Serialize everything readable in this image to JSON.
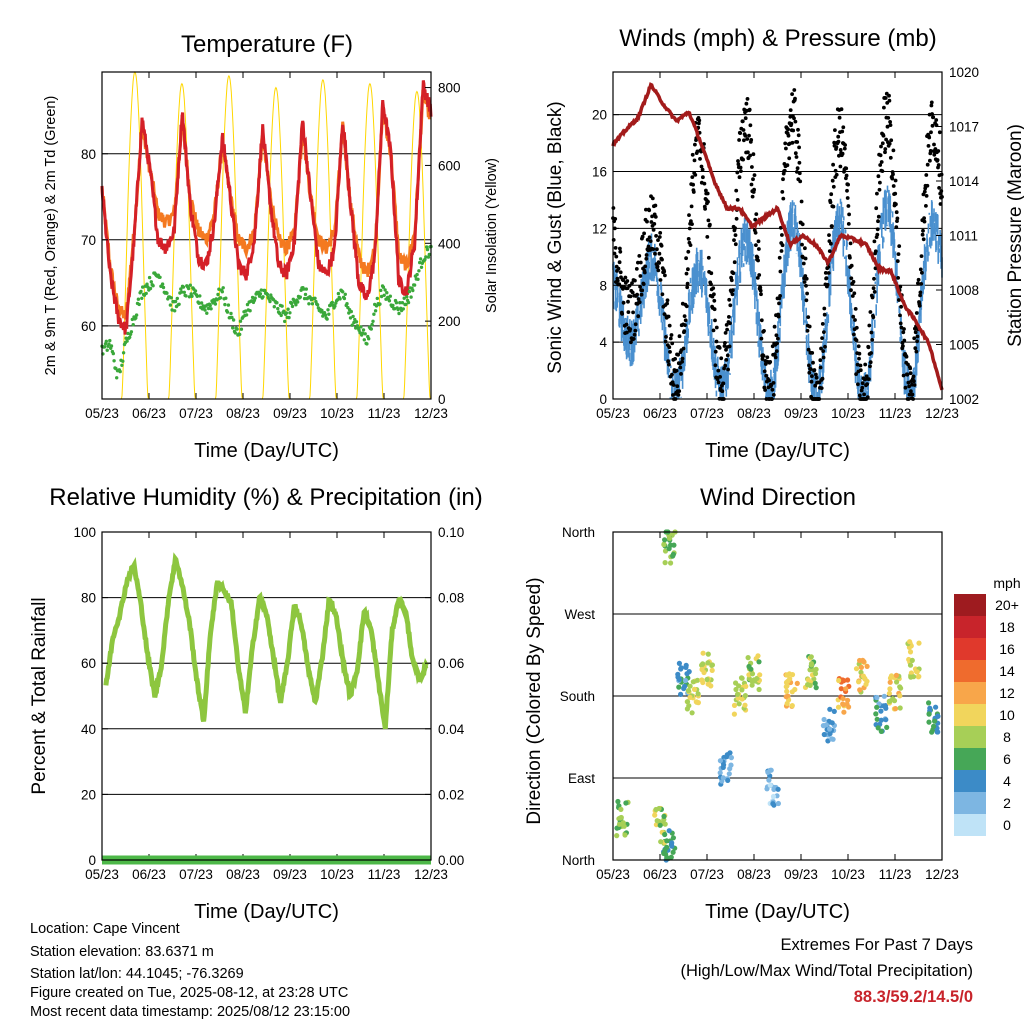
{
  "chart_data": [
    {
      "type": "line",
      "title": "Temperature (F)",
      "xlabel": "Time (Day/UTC)",
      "ylabel": "2m & 9m T (Red, Orange) & 2m Td (Green)",
      "y2label": "Solar Insolation (Yellow)",
      "x_ticks": [
        "05/23",
        "06/23",
        "07/23",
        "08/23",
        "09/23",
        "10/23",
        "11/23",
        "12/23"
      ],
      "ylim": [
        51.5,
        89.5
      ],
      "y_ticks": [
        60,
        70,
        80
      ],
      "y2lim": [
        0,
        840
      ],
      "y2_ticks": [
        0,
        200,
        400,
        600,
        800
      ],
      "grid": true,
      "series": [
        {
          "name": "2m T",
          "color": "#d42027",
          "values": [
            76,
            66,
            61,
            59.5,
            70,
            84,
            78,
            70,
            69,
            71,
            85,
            74,
            68,
            67,
            72,
            82,
            75,
            67,
            66,
            70,
            83,
            74,
            67,
            66,
            70,
            84,
            75,
            67,
            66,
            69,
            84,
            74,
            65,
            63,
            68,
            86,
            80,
            65,
            64,
            70,
            88,
            85
          ]
        },
        {
          "name": "9m T",
          "color": "#f47920",
          "values": [
            76,
            67,
            62,
            61,
            71,
            83,
            78,
            73,
            72,
            73,
            84,
            75,
            71,
            70,
            73,
            81,
            75,
            70,
            69,
            71,
            82,
            75,
            70,
            69,
            71,
            83,
            75,
            70,
            69,
            71,
            83,
            74,
            68,
            66,
            69,
            85,
            80,
            68,
            67,
            71,
            87,
            84
          ]
        },
        {
          "name": "2m Td",
          "color": "#3aa83a",
          "values": [
            57,
            58,
            54,
            58,
            61,
            64,
            65,
            66,
            64,
            62,
            64,
            64,
            63,
            62,
            63,
            64,
            61,
            59,
            62,
            63,
            64,
            63,
            62,
            61,
            63,
            64,
            63,
            62,
            61,
            63,
            64,
            61,
            60,
            58,
            62,
            64,
            63,
            62,
            63,
            65,
            68,
            69
          ]
        },
        {
          "name": "Solar Insolation",
          "color": "#ffd700",
          "axis": "y2",
          "peaks": [
            840,
            810,
            830,
            800,
            820,
            810,
            790,
            840
          ]
        }
      ]
    },
    {
      "type": "scatter",
      "title": "Winds (mph) & Pressure (mb)",
      "xlabel": "Time (Day/UTC)",
      "ylabel": "Sonic Wind & Gust (Blue, Black)",
      "y2label": "Station Pressure (Maroon)",
      "x_ticks": [
        "05/23",
        "06/23",
        "07/23",
        "08/23",
        "09/23",
        "10/23",
        "11/23",
        "12/23"
      ],
      "ylim": [
        0,
        23
      ],
      "y_ticks": [
        0,
        4,
        8,
        12,
        16,
        20
      ],
      "y2lim": [
        1002,
        1020
      ],
      "y2_ticks": [
        1002,
        1005,
        1008,
        1011,
        1014,
        1017,
        1020
      ],
      "grid": true,
      "series": [
        {
          "name": "Sonic Wind",
          "color": "#4a90cf",
          "daily_peaks": [
            9,
            10,
            9,
            11,
            12,
            13,
            12,
            14,
            12
          ],
          "daily_lows": [
            6,
            1,
            0,
            1,
            0,
            0,
            0,
            0,
            2
          ]
        },
        {
          "name": "Gust",
          "color": "#000000",
          "daily_peaks": [
            13,
            12,
            18,
            19,
            21,
            18,
            19,
            20,
            19
          ],
          "daily_lows": [
            8,
            3,
            0,
            2,
            0,
            0,
            0,
            0,
            4
          ]
        },
        {
          "name": "Station Pressure",
          "color": "#a31b1b",
          "values": [
            1016,
            1016.8,
            1017.5,
            1019.3,
            1018.2,
            1017.3,
            1017.8,
            1016,
            1014,
            1012.5,
            1012.5,
            1011.5,
            1012,
            1012.5,
            1010.5,
            1011,
            1010.5,
            1009.5,
            1011,
            1010.8,
            1010.5,
            1009.2,
            1009,
            1007.2,
            1006.2,
            1005,
            1002.5
          ]
        }
      ]
    },
    {
      "type": "line",
      "title": "Relative Humidity (%) & Precipitation (in)",
      "xlabel": "Time (Day/UTC)",
      "ylabel": "Percent & Total Rainfall",
      "x_ticks": [
        "05/23",
        "06/23",
        "07/23",
        "08/23",
        "09/23",
        "10/23",
        "11/23",
        "12/23"
      ],
      "ylim": [
        0,
        100
      ],
      "y_ticks": [
        0,
        20,
        40,
        60,
        80,
        100
      ],
      "y2lim": [
        0,
        0.1
      ],
      "y2_ticks": [
        "0.00",
        "0.02",
        "0.04",
        "0.06",
        "0.08",
        "0.10"
      ],
      "grid": true,
      "series": [
        {
          "name": "Relative Humidity",
          "color": "#8dc63f",
          "values": [
            53,
            68,
            75,
            85,
            90,
            78,
            62,
            50,
            60,
            80,
            92,
            83,
            72,
            55,
            42,
            70,
            85,
            82,
            78,
            58,
            45,
            65,
            80,
            75,
            62,
            48,
            60,
            78,
            72,
            58,
            48,
            62,
            80,
            74,
            60,
            50,
            58,
            76,
            70,
            55,
            40,
            70,
            80,
            75,
            60,
            55,
            60
          ]
        },
        {
          "name": "Total Rainfall",
          "color": "#4db848",
          "values": [
            0,
            0,
            0,
            0,
            0,
            0,
            0,
            0
          ]
        }
      ]
    },
    {
      "type": "scatter",
      "title": "Wind Direction",
      "xlabel": "Time (Day/UTC)",
      "ylabel": "Direction (Colored By Speed)",
      "x_ticks": [
        "05/23",
        "06/23",
        "07/23",
        "08/23",
        "09/23",
        "10/23",
        "11/23",
        "12/23"
      ],
      "y_ticks": [
        "North",
        "East",
        "South",
        "West",
        "North"
      ],
      "ylim": [
        0,
        360
      ],
      "grid": true,
      "legend": {
        "title": "mph",
        "labels": [
          "20+",
          "18",
          "16",
          "14",
          "12",
          "10",
          "8",
          "6",
          "4",
          "2",
          "0"
        ],
        "colors": [
          "#9e1b1f",
          "#c8242b",
          "#e0392c",
          "#ef6b2d",
          "#f8a64a",
          "#f1d55c",
          "#a7cf57",
          "#46a757",
          "#3c8bc7",
          "#7db6e2",
          "#bfe3f7"
        ]
      },
      "clusters": [
        {
          "day": 0.2,
          "dir": 45,
          "speed": 7
        },
        {
          "day": 1.0,
          "dir": 38,
          "speed": 8
        },
        {
          "day": 1.2,
          "dir": 18,
          "speed": 5
        },
        {
          "day": 1.2,
          "dir": 345,
          "speed": 7
        },
        {
          "day": 1.5,
          "dir": 200,
          "speed": 4
        },
        {
          "day": 1.7,
          "dir": 180,
          "speed": 9
        },
        {
          "day": 2.0,
          "dir": 210,
          "speed": 9
        },
        {
          "day": 2.4,
          "dir": 100,
          "speed": 3
        },
        {
          "day": 2.7,
          "dir": 180,
          "speed": 9
        },
        {
          "day": 3.0,
          "dir": 205,
          "speed": 8
        },
        {
          "day": 3.4,
          "dir": 80,
          "speed": 2
        },
        {
          "day": 3.8,
          "dir": 185,
          "speed": 11
        },
        {
          "day": 4.2,
          "dir": 205,
          "speed": 8
        },
        {
          "day": 4.6,
          "dir": 150,
          "speed": 3
        },
        {
          "day": 4.9,
          "dir": 180,
          "speed": 12
        },
        {
          "day": 5.3,
          "dir": 200,
          "speed": 10
        },
        {
          "day": 5.7,
          "dir": 160,
          "speed": 4
        },
        {
          "day": 6.0,
          "dir": 185,
          "speed": 10
        },
        {
          "day": 6.4,
          "dir": 220,
          "speed": 9
        },
        {
          "day": 6.8,
          "dir": 160,
          "speed": 5
        },
        {
          "day": 7.2,
          "dir": 190,
          "speed": 11
        },
        {
          "day": 7.5,
          "dir": 210,
          "speed": 8
        }
      ]
    }
  ],
  "footer": {
    "location": "Location: Cape Vincent",
    "elevation": "Station elevation: 83.6371 m",
    "latlon": "Station lat/lon: 44.1045; -76.3269",
    "created": "Figure created on Tue, 2025-08-12, at 23:28 UTC",
    "timestamp": "Most recent data timestamp: 2025/08/12 23:15:00"
  },
  "extremes": {
    "title": "Extremes For Past 7 Days",
    "subtitle": "(High/Low/Max Wind/Total Precipitation)",
    "values": "88.3/59.2/14.5/0",
    "values_color": "#c8242b"
  }
}
